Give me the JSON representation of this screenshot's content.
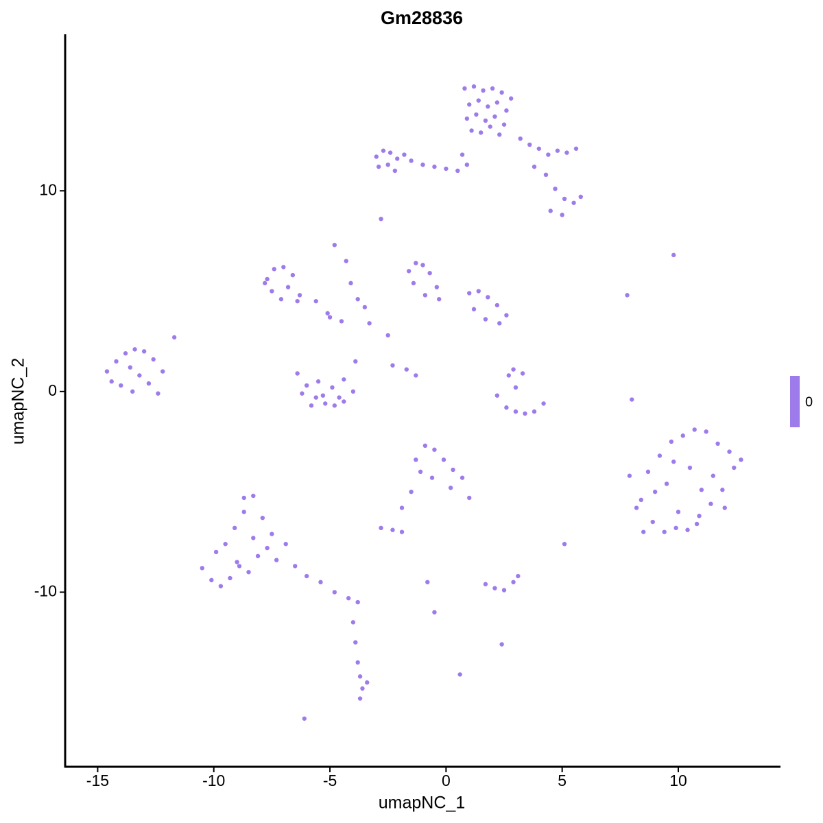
{
  "chart_data": {
    "type": "scatter",
    "title": "Gm28836",
    "x_label": "umapNC_1",
    "y_label": "umapNC_2",
    "xlim": [
      -16.4,
      14.4
    ],
    "ylim": [
      -18.7,
      17.8
    ],
    "xticks": [
      -15,
      -10,
      -5,
      0,
      5,
      10
    ],
    "yticks": [
      -10,
      0,
      10
    ],
    "colorbar": {
      "ticks": [
        0
      ]
    },
    "series": [
      {
        "color": "#9e7bea",
        "x": [
          0.8,
          1.2,
          1.6,
          2.0,
          2.4,
          2.8,
          1.0,
          1.4,
          1.8,
          2.2,
          2.6,
          0.9,
          1.3,
          1.7,
          2.1,
          2.5,
          1.1,
          1.5,
          1.9,
          2.3,
          3.2,
          3.6,
          4.0,
          4.4,
          4.8,
          5.2,
          5.6,
          3.8,
          4.3,
          4.7,
          5.1,
          5.5,
          5.8,
          4.5,
          5.0,
          -3.0,
          -2.7,
          -2.4,
          -2.1,
          -1.8,
          -2.9,
          -2.5,
          -2.2,
          -1.5,
          -1.0,
          -0.5,
          0.0,
          0.5,
          0.9,
          0.7,
          -14.6,
          -14.2,
          -13.8,
          -13.4,
          -13.0,
          -12.6,
          -14.4,
          -14.0,
          -13.6,
          -13.2,
          -12.8,
          -13.5,
          -12.4,
          -11.7,
          -12.2,
          -7.7,
          -7.4,
          -7.0,
          -6.6,
          -7.5,
          -7.1,
          -6.4,
          -7.8,
          -6.8,
          -6.3,
          -6.4,
          -6.0,
          -5.6,
          -5.2,
          -4.8,
          -4.4,
          -4.0,
          -6.2,
          -5.8,
          -5.3,
          -4.9,
          -4.4,
          -3.9,
          -5.5,
          -4.6,
          -1.6,
          -1.3,
          -1.0,
          -0.7,
          -0.4,
          -1.4,
          -0.9,
          -0.3,
          1.0,
          1.4,
          1.8,
          2.2,
          2.6,
          1.2,
          1.7,
          2.3,
          -5.0,
          -3.5,
          -2.5,
          -4.5,
          -4.8,
          -4.3,
          -4.1,
          -3.8,
          -3.3,
          -2.3,
          -1.7,
          -1.3,
          -5.6,
          -5.1,
          2.2,
          2.6,
          3.0,
          3.4,
          3.8,
          4.2,
          2.7,
          3.3,
          3.0,
          2.9,
          7.9,
          8.4,
          8.9,
          9.4,
          9.9,
          10.4,
          10.9,
          11.4,
          11.9,
          12.4,
          8.2,
          8.7,
          9.2,
          9.7,
          10.2,
          10.7,
          11.2,
          11.7,
          12.2,
          12.7,
          8.5,
          9.0,
          9.5,
          10.0,
          10.5,
          11.0,
          11.5,
          12.0,
          10.8,
          9.8,
          -1.3,
          -0.9,
          -0.5,
          -0.1,
          0.3,
          0.7,
          1.0,
          -1.1,
          -0.6,
          0.2,
          -1.5,
          -1.9,
          -10.5,
          -10.1,
          -9.7,
          -9.3,
          -8.9,
          -8.5,
          -8.1,
          -7.7,
          -7.3,
          -6.9,
          -9.9,
          -9.5,
          -9.1,
          -8.7,
          -8.3,
          -7.9,
          -7.5,
          -8.7,
          -8.3,
          -9.0,
          -6.5,
          -6.0,
          -5.4,
          -4.8,
          -4.2,
          -3.8,
          -4.0,
          -3.9,
          -3.8,
          -3.7,
          -3.6,
          -3.4,
          -3.7,
          1.7,
          2.1,
          2.5,
          2.9,
          3.1,
          -2.8,
          -2.3,
          -1.9,
          -0.8,
          -0.5,
          2.4,
          0.6,
          5.1,
          8.0,
          9.8,
          -6.1,
          -2.8,
          7.8
        ],
        "y": [
          15.1,
          15.2,
          15.0,
          15.1,
          14.9,
          14.6,
          14.3,
          14.5,
          14.2,
          14.4,
          14.0,
          13.6,
          13.8,
          13.5,
          13.7,
          13.3,
          13.0,
          12.9,
          13.2,
          12.8,
          12.6,
          12.3,
          12.1,
          11.8,
          12.0,
          11.9,
          12.1,
          11.2,
          10.8,
          10.1,
          9.6,
          9.4,
          9.7,
          9.0,
          8.8,
          11.7,
          12.0,
          11.9,
          11.6,
          11.8,
          11.2,
          11.3,
          11.0,
          11.5,
          11.3,
          11.2,
          11.1,
          11.0,
          11.3,
          11.8,
          1.0,
          1.5,
          1.9,
          2.1,
          2.0,
          1.6,
          0.5,
          0.3,
          1.2,
          0.8,
          0.4,
          0.0,
          -0.1,
          2.7,
          1.0,
          5.6,
          6.1,
          6.2,
          5.8,
          5.0,
          4.6,
          4.5,
          5.4,
          5.2,
          4.8,
          0.9,
          0.3,
          -0.3,
          -0.6,
          -0.7,
          -0.5,
          0.0,
          -0.1,
          -0.7,
          -0.2,
          0.2,
          0.6,
          1.5,
          0.5,
          -0.3,
          6.0,
          6.4,
          6.3,
          5.9,
          5.2,
          5.4,
          4.8,
          4.6,
          4.9,
          5.0,
          4.7,
          4.3,
          3.8,
          4.1,
          3.6,
          3.4,
          3.7,
          4.2,
          2.8,
          3.5,
          7.3,
          6.5,
          5.4,
          4.6,
          3.4,
          1.3,
          1.1,
          0.8,
          4.5,
          3.9,
          -0.2,
          -0.8,
          -1.0,
          -1.1,
          -1.0,
          -0.6,
          0.8,
          0.9,
          0.2,
          1.1,
          -4.2,
          -5.4,
          -6.5,
          -7.0,
          -6.8,
          -6.9,
          -6.2,
          -5.6,
          -4.9,
          -3.8,
          -5.8,
          -4.0,
          -3.2,
          -2.5,
          -2.2,
          -1.9,
          -2.0,
          -2.6,
          -3.0,
          -3.4,
          -7.0,
          -5.0,
          -4.6,
          -6.0,
          -3.8,
          -4.9,
          -4.2,
          -5.8,
          -6.6,
          -3.5,
          -3.4,
          -2.7,
          -2.9,
          -3.4,
          -3.9,
          -4.3,
          -5.3,
          -4.0,
          -4.3,
          -4.8,
          -5.0,
          -5.8,
          -8.8,
          -9.4,
          -9.7,
          -9.3,
          -8.7,
          -9.0,
          -8.2,
          -7.8,
          -8.4,
          -7.6,
          -8.0,
          -7.6,
          -6.8,
          -5.3,
          -5.2,
          -6.3,
          -7.1,
          -6.0,
          -7.3,
          -8.5,
          -8.7,
          -9.2,
          -9.5,
          -10.0,
          -10.3,
          -10.5,
          -11.5,
          -12.5,
          -13.5,
          -14.2,
          -14.8,
          -14.5,
          -15.3,
          -9.6,
          -9.8,
          -9.9,
          -9.5,
          -9.2,
          -6.8,
          -6.9,
          -7.0,
          -9.5,
          -11.0,
          -12.6,
          -14.1,
          -7.6,
          -0.4,
          6.8,
          -16.3,
          8.6,
          4.8
        ]
      }
    ]
  }
}
